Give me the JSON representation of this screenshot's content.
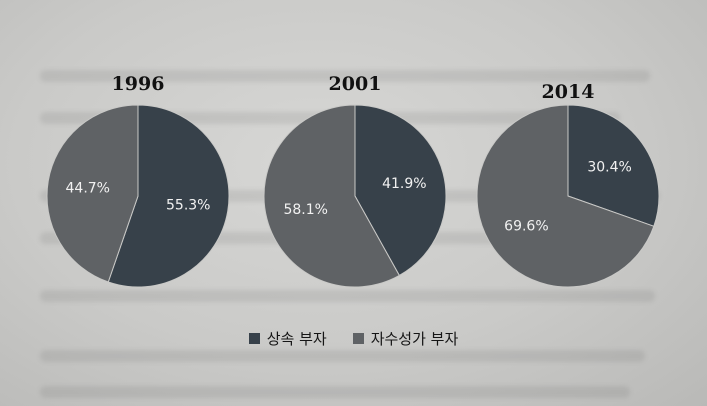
{
  "colors": {
    "inherited": "#37414a",
    "self_made": "#5f6265",
    "divider": "#c9c9c7"
  },
  "legend": {
    "inherited_label": "상속 부자",
    "self_made_label": "자수성가 부자"
  },
  "chart_data": [
    {
      "type": "pie",
      "title": "1996",
      "slices": [
        {
          "label": "상속 부자",
          "value": 55.3,
          "text": "55.3%"
        },
        {
          "label": "자수성가 부자",
          "value": 44.7,
          "text": "44.7%"
        }
      ]
    },
    {
      "type": "pie",
      "title": "2001",
      "slices": [
        {
          "label": "상속 부자",
          "value": 41.9,
          "text": "41.9%"
        },
        {
          "label": "자수성가 부자",
          "value": 58.1,
          "text": "58.1%"
        }
      ]
    },
    {
      "type": "pie",
      "title": "2014",
      "slices": [
        {
          "label": "상속 부자",
          "value": 30.4,
          "text": "30.4%"
        },
        {
          "label": "자수성가 부자",
          "value": 69.6,
          "text": "69.6%"
        }
      ]
    }
  ]
}
